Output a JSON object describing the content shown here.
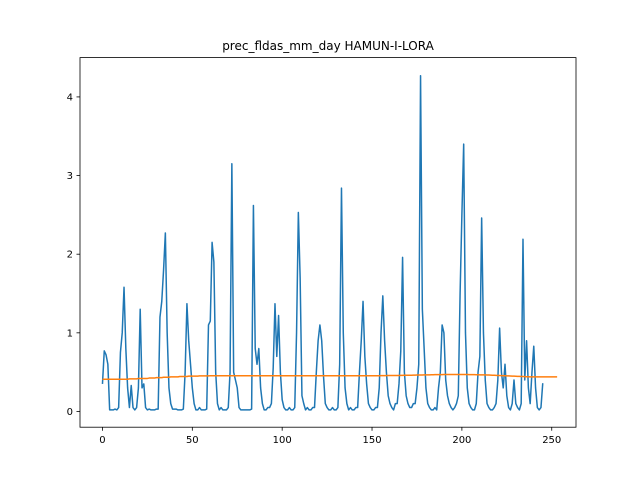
{
  "chart_data": {
    "type": "line",
    "title": "prec_fldas_mm_day HAMUN-I-LORA",
    "xlabel": "",
    "ylabel": "",
    "xlim": [
      -12.5,
      263.5
    ],
    "ylim": [
      -0.2,
      4.5
    ],
    "xticks": [
      0,
      50,
      100,
      150,
      200,
      250
    ],
    "yticks": [
      0,
      1,
      2,
      3,
      4
    ],
    "grid": false,
    "legend": "none",
    "series": [
      {
        "color": "#1f77b4",
        "values": [
          0.35,
          0.77,
          0.72,
          0.6,
          0.02,
          0.02,
          0.02,
          0.03,
          0.02,
          0.05,
          0.75,
          1.0,
          1.58,
          0.8,
          0.3,
          0.05,
          0.33,
          0.05,
          0.02,
          0.05,
          0.3,
          1.3,
          0.3,
          0.35,
          0.05,
          0.02,
          0.03,
          0.02,
          0.02,
          0.02,
          0.03,
          0.03,
          1.2,
          1.4,
          1.8,
          2.27,
          1.0,
          0.3,
          0.1,
          0.03,
          0.03,
          0.03,
          0.02,
          0.02,
          0.02,
          0.03,
          0.5,
          1.37,
          0.9,
          0.6,
          0.3,
          0.1,
          0.02,
          0.02,
          0.05,
          0.02,
          0.02,
          0.02,
          0.03,
          1.1,
          1.15,
          2.15,
          1.9,
          0.5,
          0.1,
          0.02,
          0.05,
          0.02,
          0.02,
          0.02,
          0.05,
          0.5,
          3.15,
          0.5,
          0.4,
          0.3,
          0.05,
          0.02,
          0.02,
          0.02,
          0.02,
          0.02,
          0.02,
          0.03,
          2.62,
          0.8,
          0.6,
          0.8,
          0.3,
          0.1,
          0.02,
          0.02,
          0.05,
          0.05,
          0.1,
          0.55,
          1.37,
          0.7,
          1.22,
          0.5,
          0.15,
          0.05,
          0.02,
          0.02,
          0.05,
          0.02,
          0.02,
          0.05,
          1.0,
          2.53,
          1.7,
          0.2,
          0.1,
          0.02,
          0.05,
          0.02,
          0.02,
          0.05,
          0.05,
          0.5,
          0.9,
          1.1,
          0.9,
          0.45,
          0.1,
          0.05,
          0.02,
          0.02,
          0.05,
          0.02,
          0.02,
          0.05,
          0.6,
          2.84,
          1.0,
          0.3,
          0.1,
          0.02,
          0.05,
          0.02,
          0.02,
          0.05,
          0.05,
          0.5,
          0.9,
          1.4,
          0.7,
          0.35,
          0.1,
          0.05,
          0.02,
          0.02,
          0.05,
          0.05,
          0.3,
          1.0,
          1.47,
          0.9,
          0.5,
          0.2,
          0.1,
          0.05,
          0.02,
          0.1,
          0.1,
          0.35,
          0.77,
          1.96,
          0.5,
          0.2,
          0.1,
          0.05,
          0.05,
          0.1,
          0.1,
          0.3,
          0.6,
          4.27,
          1.3,
          0.8,
          0.3,
          0.1,
          0.05,
          0.02,
          0.02,
          0.05,
          0.02,
          0.3,
          0.5,
          1.1,
          1.0,
          0.4,
          0.2,
          0.1,
          0.05,
          0.02,
          0.05,
          0.1,
          0.2,
          1.5,
          2.5,
          3.4,
          1.0,
          0.3,
          0.1,
          0.05,
          0.02,
          0.02,
          0.1,
          0.5,
          0.7,
          2.46,
          1.0,
          0.4,
          0.1,
          0.05,
          0.02,
          0.02,
          0.05,
          0.1,
          0.4,
          1.06,
          0.5,
          0.3,
          0.6,
          0.2,
          0.05,
          0.02,
          0.1,
          0.4,
          0.1,
          0.05,
          0.02,
          0.1,
          2.19,
          0.4,
          0.9,
          0.3,
          0.1,
          0.5,
          0.83,
          0.3,
          0.05,
          0.02,
          0.05,
          0.36
        ]
      },
      {
        "color": "#ff7f0e",
        "values": [
          0.41,
          0.41,
          0.41,
          0.41,
          0.41,
          0.41,
          0.41,
          0.41,
          0.41,
          0.41,
          0.41,
          0.41,
          0.41,
          0.41,
          0.41,
          0.415,
          0.415,
          0.415,
          0.415,
          0.415,
          0.42,
          0.42,
          0.42,
          0.42,
          0.42,
          0.42,
          0.425,
          0.425,
          0.425,
          0.425,
          0.43,
          0.43,
          0.43,
          0.43,
          0.435,
          0.435,
          0.435,
          0.435,
          0.44,
          0.44,
          0.44,
          0.44,
          0.44,
          0.445,
          0.445,
          0.445,
          0.445,
          0.445,
          0.45,
          0.45,
          0.45,
          0.45,
          0.45,
          0.45,
          0.452,
          0.452,
          0.452,
          0.453,
          0.453,
          0.453,
          0.454,
          0.454,
          0.454,
          0.455,
          0.455,
          0.455,
          0.455,
          0.455,
          0.455,
          0.455,
          0.455,
          0.455,
          0.455,
          0.455,
          0.455,
          0.455,
          0.455,
          0.455,
          0.455,
          0.455,
          0.455,
          0.455,
          0.455,
          0.455,
          0.455,
          0.455,
          0.455,
          0.455,
          0.455,
          0.455,
          0.455,
          0.455,
          0.455,
          0.455,
          0.455,
          0.455,
          0.455,
          0.455,
          0.455,
          0.455,
          0.455,
          0.455,
          0.455,
          0.455,
          0.455,
          0.455,
          0.455,
          0.455,
          0.455,
          0.455,
          0.455,
          0.455,
          0.455,
          0.455,
          0.455,
          0.455,
          0.455,
          0.455,
          0.455,
          0.455,
          0.455,
          0.455,
          0.455,
          0.455,
          0.455,
          0.455,
          0.455,
          0.455,
          0.455,
          0.455,
          0.455,
          0.455,
          0.455,
          0.455,
          0.455,
          0.455,
          0.455,
          0.455,
          0.455,
          0.455,
          0.455,
          0.455,
          0.455,
          0.455,
          0.455,
          0.455,
          0.455,
          0.455,
          0.455,
          0.455,
          0.455,
          0.455,
          0.455,
          0.455,
          0.455,
          0.456,
          0.456,
          0.456,
          0.456,
          0.457,
          0.457,
          0.457,
          0.457,
          0.458,
          0.458,
          0.458,
          0.459,
          0.459,
          0.46,
          0.46,
          0.46,
          0.461,
          0.461,
          0.462,
          0.462,
          0.463,
          0.463,
          0.464,
          0.464,
          0.465,
          0.465,
          0.466,
          0.466,
          0.467,
          0.467,
          0.468,
          0.468,
          0.468,
          0.469,
          0.469,
          0.47,
          0.47,
          0.47,
          0.47,
          0.47,
          0.47,
          0.47,
          0.47,
          0.47,
          0.47,
          0.47,
          0.47,
          0.47,
          0.47,
          0.469,
          0.469,
          0.468,
          0.468,
          0.467,
          0.467,
          0.466,
          0.466,
          0.465,
          0.465,
          0.464,
          0.463,
          0.462,
          0.461,
          0.46,
          0.459,
          0.458,
          0.457,
          0.456,
          0.455,
          0.454,
          0.453,
          0.452,
          0.451,
          0.45,
          0.449,
          0.448,
          0.447,
          0.446,
          0.445,
          0.444,
          0.443,
          0.442,
          0.441,
          0.44,
          0.44,
          0.44,
          0.44,
          0.44,
          0.44,
          0.44,
          0.44,
          0.44,
          0.44,
          0.44,
          0.44,
          0.44,
          0.44,
          0.44,
          0.44
        ]
      }
    ]
  }
}
